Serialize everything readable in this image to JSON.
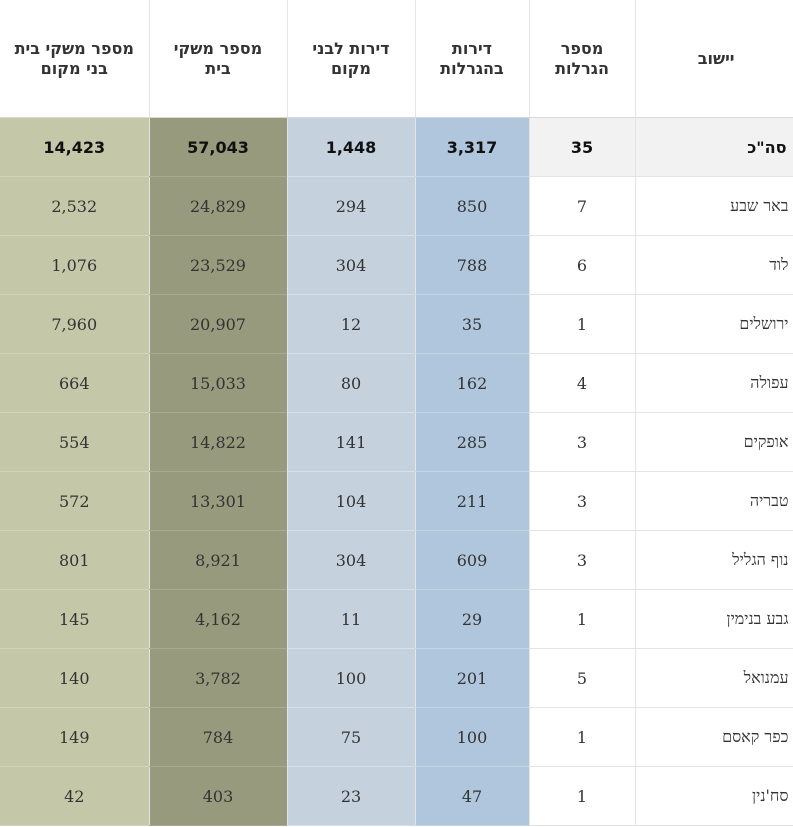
{
  "headers": {
    "town": "יישוב",
    "lotteries": "מספר הגרלות",
    "apartments": "דירות בהגרלות",
    "local_apartments": "דירות לבני מקום",
    "households": "מספר משקי בית",
    "local_households": "מספר משקי בית בני מקום"
  },
  "total": {
    "town": "סה\"כ",
    "lotteries": "35",
    "apartments": "3,317",
    "local_apartments": "1,448",
    "households": "57,043",
    "local_households": "14,423"
  },
  "rows": [
    {
      "town": "באר שבע",
      "lotteries": "7",
      "apartments": "850",
      "local_apartments": "294",
      "households": "24,829",
      "local_households": "2,532"
    },
    {
      "town": "לוד",
      "lotteries": "6",
      "apartments": "788",
      "local_apartments": "304",
      "households": "23,529",
      "local_households": "1,076"
    },
    {
      "town": "ירושלים",
      "lotteries": "1",
      "apartments": "35",
      "local_apartments": "12",
      "households": "20,907",
      "local_households": "7,960"
    },
    {
      "town": "עפולה",
      "lotteries": "4",
      "apartments": "162",
      "local_apartments": "80",
      "households": "15,033",
      "local_households": "664"
    },
    {
      "town": "אופקים",
      "lotteries": "3",
      "apartments": "285",
      "local_apartments": "141",
      "households": "14,822",
      "local_households": "554"
    },
    {
      "town": "טבריה",
      "lotteries": "3",
      "apartments": "211",
      "local_apartments": "104",
      "households": "13,301",
      "local_households": "572"
    },
    {
      "town": "נוף הגליל",
      "lotteries": "3",
      "apartments": "609",
      "local_apartments": "304",
      "households": "8,921",
      "local_households": "801"
    },
    {
      "town": "גבע בנימין",
      "lotteries": "1",
      "apartments": "29",
      "local_apartments": "11",
      "households": "4,162",
      "local_households": "145"
    },
    {
      "town": "עמנואל",
      "lotteries": "5",
      "apartments": "201",
      "local_apartments": "100",
      "households": "3,782",
      "local_households": "140"
    },
    {
      "town": "כפר קאסם",
      "lotteries": "1",
      "apartments": "100",
      "local_apartments": "75",
      "households": "784",
      "local_households": "149"
    },
    {
      "town": "סח'נין",
      "lotteries": "1",
      "apartments": "47",
      "local_apartments": "23",
      "households": "403",
      "local_households": "42"
    }
  ],
  "colors": {
    "apartments_column": "#afc6dd",
    "local_apartments_column": "#c5d2de",
    "households_column": "#979a7c",
    "local_households_column": "#c4c8a8",
    "total_row": "#f2f2f2"
  }
}
